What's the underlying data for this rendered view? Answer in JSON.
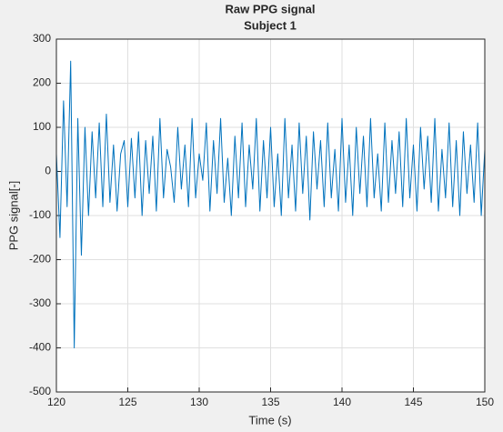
{
  "chart_data": {
    "type": "line",
    "title": "Raw PPG signal",
    "subtitle": "Subject 1",
    "xlabel": "Time (s)",
    "ylabel": "PPG signal[-]",
    "x": [
      120,
      120.25,
      120.5,
      120.75,
      121,
      121.25,
      121.5,
      121.75,
      122,
      122.25,
      122.5,
      122.75,
      123,
      123.25,
      123.5,
      123.75,
      124,
      124.25,
      124.5,
      124.75,
      125,
      125.25,
      125.5,
      125.75,
      126,
      126.25,
      126.5,
      126.75,
      127,
      127.25,
      127.5,
      127.75,
      128,
      128.25,
      128.5,
      128.75,
      129,
      129.25,
      129.5,
      129.75,
      130,
      130.25,
      130.5,
      130.75,
      131,
      131.25,
      131.5,
      131.75,
      132,
      132.25,
      132.5,
      132.75,
      133,
      133.25,
      133.5,
      133.75,
      134,
      134.25,
      134.5,
      134.75,
      135,
      135.25,
      135.5,
      135.75,
      136,
      136.25,
      136.5,
      136.75,
      137,
      137.25,
      137.5,
      137.75,
      138,
      138.25,
      138.5,
      138.75,
      139,
      139.25,
      139.5,
      139.75,
      140,
      140.25,
      140.5,
      140.75,
      141,
      141.25,
      141.5,
      141.75,
      142,
      142.25,
      142.5,
      142.75,
      143,
      143.25,
      143.5,
      143.75,
      144,
      144.25,
      144.5,
      144.75,
      145,
      145.25,
      145.5,
      145.75,
      146,
      146.25,
      146.5,
      146.75,
      147,
      147.25,
      147.5,
      147.75,
      148,
      148.25,
      148.5,
      148.75,
      149,
      149.25,
      149.5,
      149.75,
      150
    ],
    "values": [
      40,
      -150,
      160,
      -80,
      250,
      -400,
      120,
      -190,
      100,
      -100,
      90,
      -60,
      110,
      -80,
      130,
      -70,
      60,
      -90,
      40,
      70,
      -80,
      75,
      -60,
      90,
      -100,
      70,
      -50,
      80,
      -90,
      120,
      -60,
      50,
      10,
      -70,
      100,
      -40,
      60,
      -80,
      120,
      -60,
      40,
      -20,
      110,
      -90,
      70,
      -50,
      120,
      -70,
      30,
      -100,
      80,
      -60,
      110,
      -80,
      60,
      -40,
      120,
      -90,
      70,
      -60,
      100,
      -80,
      40,
      -100,
      120,
      -60,
      60,
      -90,
      110,
      -50,
      80,
      -110,
      90,
      -40,
      70,
      -80,
      110,
      -60,
      50,
      -90,
      120,
      -70,
      60,
      -100,
      100,
      -50,
      80,
      -80,
      120,
      -60,
      40,
      -90,
      110,
      -70,
      70,
      -50,
      90,
      -80,
      120,
      -60,
      60,
      -90,
      100,
      -40,
      80,
      -70,
      120,
      -90,
      50,
      -60,
      110,
      -80,
      70,
      -100,
      90,
      -50,
      60,
      -70,
      110,
      -100,
      50
    ],
    "color": "#0072bd",
    "xlim": [
      120,
      150
    ],
    "xticks": [
      120,
      125,
      130,
      135,
      140,
      145,
      150
    ],
    "ylim": [
      -500,
      300
    ],
    "yticks": [
      -500,
      -400,
      -300,
      -200,
      -100,
      0,
      100,
      200,
      300
    ],
    "grid": true
  }
}
